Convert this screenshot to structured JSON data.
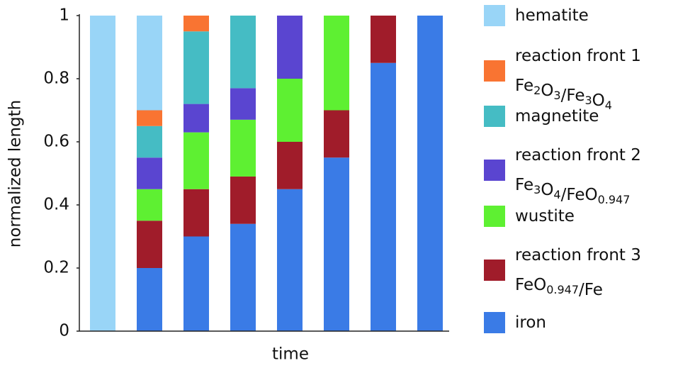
{
  "chart_data": {
    "type": "stacked-bar",
    "ylabel": "normalized length",
    "xlabel": "time",
    "categories": [
      null,
      null,
      null,
      null,
      null,
      null,
      null,
      null
    ],
    "ylim": [
      0,
      1
    ],
    "yticks": [
      0,
      0.2,
      0.4,
      0.6,
      0.8,
      1
    ],
    "series": [
      {
        "name": "hematite",
        "color": "#99d5f7",
        "values": [
          1,
          0.3,
          0,
          0,
          0,
          0,
          0,
          0
        ]
      },
      {
        "name": "reaction front 1 Fe2O3/Fe3O4",
        "color": "#f97432",
        "values": [
          0,
          0.05,
          0.05,
          0,
          0,
          0,
          0,
          0
        ]
      },
      {
        "name": "magnetite",
        "color": "#45bcc4",
        "values": [
          0,
          0.1,
          0.23,
          0.23,
          0,
          0,
          0,
          0
        ]
      },
      {
        "name": "reaction front 2 Fe3O4/FeO0.947",
        "color": "#5a45d0",
        "values": [
          0,
          0.1,
          0.09,
          0.1,
          0.2,
          0,
          0,
          0
        ]
      },
      {
        "name": "wustite",
        "color": "#5ef032",
        "values": [
          0,
          0.1,
          0.18,
          0.18,
          0.2,
          0.3,
          0,
          0
        ]
      },
      {
        "name": "reaction front 3 FeO0.947/Fe",
        "color": "#a01c2a",
        "values": [
          0,
          0.15,
          0.15,
          0.15,
          0.15,
          0.15,
          0.15,
          0
        ]
      },
      {
        "name": "iron",
        "color": "#3a7be6",
        "values": [
          0,
          0.2,
          0.3,
          0.34,
          0.45,
          0.55,
          0.85,
          1
        ]
      }
    ]
  }
}
